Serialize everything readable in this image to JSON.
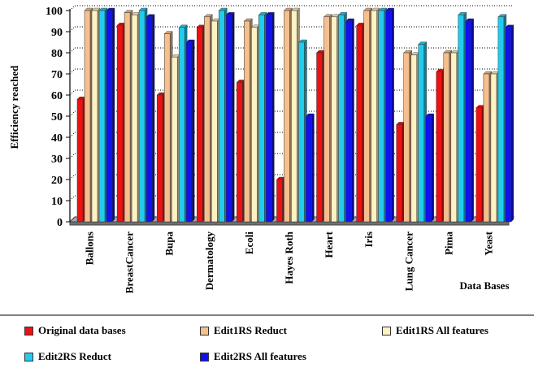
{
  "chart_data": {
    "type": "bar",
    "title": "",
    "ylabel": "Efficiency reached",
    "xlabel": "Data Bases",
    "ylim": [
      0,
      100
    ],
    "yticks": [
      0,
      10,
      20,
      30,
      40,
      50,
      60,
      70,
      80,
      90,
      100
    ],
    "categories": [
      "Ballons",
      "BreastCancer",
      "Bupa",
      "Dermatology",
      "Ecoli",
      "Hayes Roth",
      "Heart",
      "Iris",
      "Lung Cancer",
      "Pima",
      "Yeast"
    ],
    "series": [
      {
        "name": "Original data bases",
        "color": "#ee1111",
        "values": [
          58,
          93,
          60,
          92,
          66,
          20,
          80,
          93,
          46,
          71,
          54
        ]
      },
      {
        "name": "Edit1RS Reduct",
        "color": "#f5bf8e",
        "values": [
          100,
          99,
          89,
          97,
          95,
          100,
          97,
          100,
          80,
          80,
          70
        ]
      },
      {
        "name": "Edit1RS All features",
        "color": "#fdf2c4",
        "values": [
          100,
          98,
          78,
          95,
          92,
          100,
          97,
          100,
          79,
          80,
          70
        ]
      },
      {
        "name": "Edit2RS Reduct",
        "color": "#22ccee",
        "values": [
          100,
          100,
          92,
          100,
          98,
          85,
          98,
          100,
          84,
          98,
          97
        ]
      },
      {
        "name": "Edit2RS All features",
        "color": "#1111ee",
        "values": [
          100,
          97,
          85,
          98,
          98,
          50,
          95,
          100,
          50,
          95,
          92
        ]
      }
    ],
    "grid": true,
    "legend_position": "bottom"
  }
}
